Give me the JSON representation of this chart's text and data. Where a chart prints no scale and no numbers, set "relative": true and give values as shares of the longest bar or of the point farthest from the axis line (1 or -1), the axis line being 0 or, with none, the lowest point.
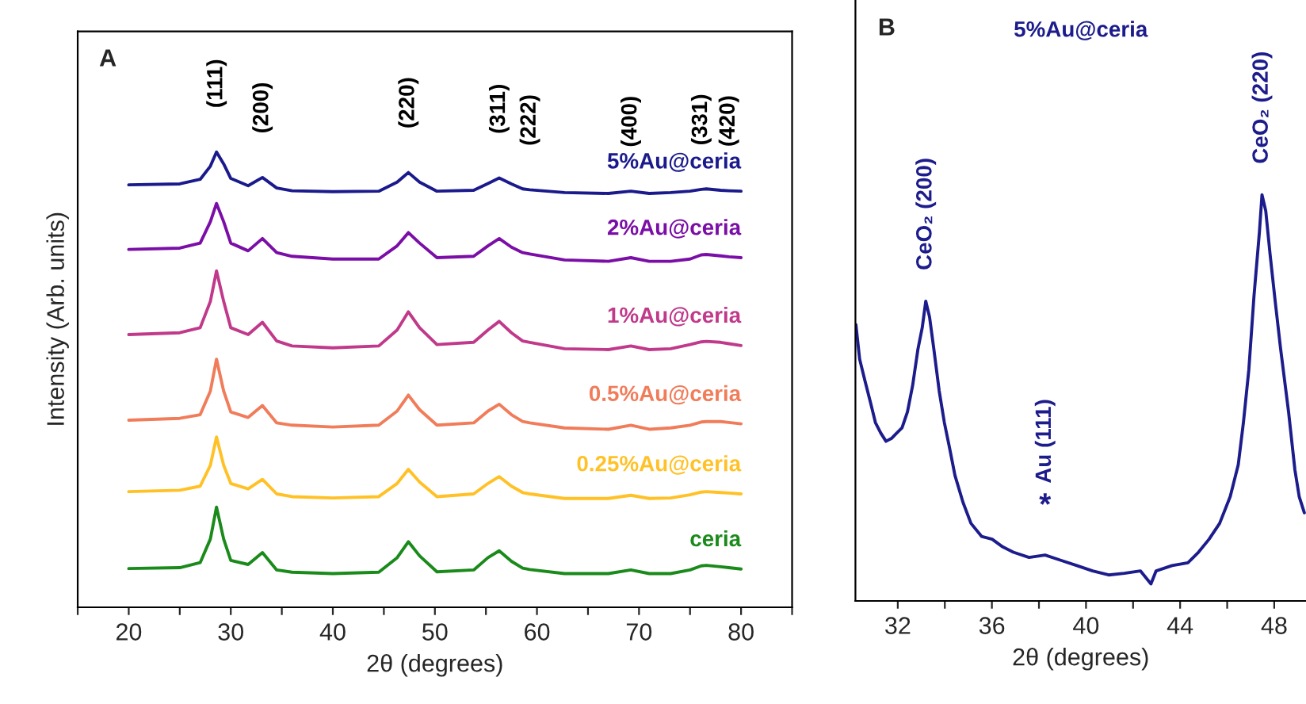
{
  "chart_data": [
    {
      "type": "line",
      "title": "A",
      "xlabel": "2θ (degrees)",
      "ylabel": "Intensity (Arb. units)",
      "relative": true,
      "tick_labels": "x",
      "legend": false,
      "grid": false,
      "marker": "none",
      "line_style": "solid",
      "x": [
        20,
        25,
        27,
        28,
        28.6,
        29.3,
        30,
        31.7,
        33.1,
        34.5,
        36,
        40,
        44.5,
        46.3,
        47.4,
        48.5,
        50.2,
        53.8,
        55.2,
        56.3,
        57.5,
        58.6,
        59.3,
        62.7,
        67,
        69.2,
        71,
        73.1,
        75,
        76.1,
        76.6,
        78,
        78.8,
        80
      ],
      "xlim": [
        15,
        85
      ],
      "xticks": [
        {
          "value": 15,
          "label": null
        },
        20,
        {
          "value": 25,
          "label": null
        },
        30,
        {
          "value": 35,
          "label": null
        },
        40,
        {
          "value": 45,
          "label": null
        },
        50,
        {
          "value": 55,
          "label": null
        },
        60,
        {
          "value": 65,
          "label": null
        },
        70,
        {
          "value": 75,
          "label": null
        },
        80,
        {
          "value": 85,
          "label": null
        }
      ],
      "series": [
        {
          "name": "5%Au@ceria",
          "color": "#1a1a8c",
          "values": [
            0.928,
            0.93,
            0.94,
            0.969,
            1.0,
            0.974,
            0.942,
            0.926,
            0.944,
            0.921,
            0.915,
            0.913,
            0.914,
            0.934,
            0.955,
            0.934,
            0.914,
            0.916,
            0.931,
            0.943,
            0.93,
            0.919,
            0.917,
            0.911,
            0.909,
            0.914,
            0.909,
            0.911,
            0.914,
            0.918,
            0.919,
            0.916,
            0.915,
            0.914
          ]
        },
        {
          "name": "2%Au@ceria",
          "color": "#7a0ea6",
          "values": [
            0.786,
            0.789,
            0.8,
            0.847,
            0.887,
            0.847,
            0.8,
            0.783,
            0.81,
            0.779,
            0.771,
            0.765,
            0.765,
            0.794,
            0.823,
            0.8,
            0.768,
            0.771,
            0.794,
            0.81,
            0.791,
            0.779,
            0.776,
            0.763,
            0.76,
            0.768,
            0.76,
            0.76,
            0.765,
            0.774,
            0.775,
            0.772,
            0.77,
            0.768
          ]
        },
        {
          "name": "1%Au@ceria",
          "color": "#c0398a",
          "values": [
            0.599,
            0.603,
            0.614,
            0.672,
            0.739,
            0.672,
            0.614,
            0.599,
            0.626,
            0.585,
            0.574,
            0.57,
            0.574,
            0.609,
            0.649,
            0.614,
            0.577,
            0.582,
            0.609,
            0.628,
            0.603,
            0.585,
            0.582,
            0.568,
            0.566,
            0.574,
            0.566,
            0.568,
            0.577,
            0.583,
            0.584,
            0.582,
            0.579,
            0.575
          ]
        },
        {
          "name": "0.5%Au@ceria",
          "color": "#f07c5a",
          "values": [
            0.411,
            0.415,
            0.423,
            0.475,
            0.545,
            0.475,
            0.429,
            0.417,
            0.443,
            0.405,
            0.4,
            0.396,
            0.4,
            0.431,
            0.466,
            0.434,
            0.4,
            0.405,
            0.431,
            0.446,
            0.423,
            0.408,
            0.405,
            0.394,
            0.391,
            0.4,
            0.391,
            0.394,
            0.4,
            0.407,
            0.408,
            0.408,
            0.406,
            0.403
          ]
        },
        {
          "name": "0.25%Au@ceria",
          "color": "#ffc125",
          "values": [
            0.254,
            0.257,
            0.266,
            0.312,
            0.374,
            0.312,
            0.272,
            0.26,
            0.281,
            0.249,
            0.243,
            0.24,
            0.243,
            0.272,
            0.303,
            0.275,
            0.243,
            0.249,
            0.272,
            0.287,
            0.266,
            0.252,
            0.249,
            0.239,
            0.239,
            0.246,
            0.239,
            0.24,
            0.247,
            0.253,
            0.254,
            0.252,
            0.251,
            0.249
          ]
        },
        {
          "name": "ceria",
          "color": "#1a8a1a",
          "values": [
            0.085,
            0.087,
            0.098,
            0.15,
            0.22,
            0.15,
            0.103,
            0.094,
            0.12,
            0.082,
            0.077,
            0.074,
            0.077,
            0.109,
            0.144,
            0.113,
            0.078,
            0.082,
            0.109,
            0.124,
            0.101,
            0.086,
            0.083,
            0.074,
            0.074,
            0.082,
            0.074,
            0.074,
            0.082,
            0.091,
            0.092,
            0.089,
            0.087,
            0.084
          ]
        }
      ],
      "annotations": [
        {
          "text": "(111)",
          "x": 28.6,
          "y": 1.0
        },
        {
          "text": "(200)",
          "x": 33.1,
          "y": 0.944
        },
        {
          "text": "(220)",
          "x": 47.4,
          "y": 0.955
        },
        {
          "text": "(311)",
          "x": 56.3,
          "y": 0.943
        },
        {
          "text": "(222)",
          "x": 59.3,
          "y": 0.917
        },
        {
          "text": "(400)",
          "x": 69.2,
          "y": 0.914
        },
        {
          "text": "(331)",
          "x": 76.1,
          "y": 0.918
        },
        {
          "text": "(420)",
          "x": 78.8,
          "y": 0.915
        }
      ]
    },
    {
      "type": "line",
      "title": "B",
      "xlabel": "2θ (degrees)",
      "relative": true,
      "tick_labels": "x",
      "legend": false,
      "grid": false,
      "marker": "none",
      "line_style": "solid",
      "xlim": [
        30.2,
        49.35
      ],
      "xticks": [
        32,
        {
          "value": 34,
          "label": null
        },
        36,
        {
          "value": 38,
          "label": null
        },
        40,
        {
          "value": 42,
          "label": null
        },
        44,
        {
          "value": 46,
          "label": null
        },
        48
      ],
      "series": [
        {
          "name": "5%Au@ceria",
          "color": "#1c1c8c",
          "x": [
            30.22,
            30.38,
            30.6,
            30.83,
            31.05,
            31.28,
            31.5,
            31.73,
            31.95,
            32.18,
            32.41,
            32.63,
            32.86,
            33.04,
            33.19,
            33.35,
            33.53,
            33.76,
            33.98,
            34.21,
            34.43,
            34.77,
            35.11,
            35.56,
            36.01,
            36.46,
            36.91,
            37.58,
            38.26,
            38.93,
            39.61,
            40.28,
            40.96,
            41.63,
            42.31,
            42.76,
            42.98,
            43.66,
            44.33,
            44.78,
            45.23,
            45.68,
            46.13,
            46.47,
            46.69,
            46.92,
            47.14,
            47.37,
            47.48,
            47.64,
            47.82,
            48.04,
            48.27,
            48.61,
            48.88,
            49.06,
            49.28
          ],
          "values": [
            0.68,
            0.595,
            0.543,
            0.491,
            0.439,
            0.413,
            0.393,
            0.4,
            0.413,
            0.426,
            0.465,
            0.53,
            0.621,
            0.673,
            0.738,
            0.699,
            0.621,
            0.517,
            0.439,
            0.374,
            0.309,
            0.243,
            0.191,
            0.159,
            0.152,
            0.133,
            0.12,
            0.107,
            0.113,
            0.1,
            0.087,
            0.074,
            0.064,
            0.068,
            0.074,
            0.042,
            0.074,
            0.087,
            0.094,
            0.12,
            0.152,
            0.191,
            0.257,
            0.335,
            0.439,
            0.569,
            0.751,
            0.908,
            1.0,
            0.96,
            0.855,
            0.738,
            0.621,
            0.465,
            0.322,
            0.257,
            0.217
          ]
        }
      ],
      "annotations": [
        {
          "text": "CeO₂ (200)",
          "x": 33.19,
          "y": 0.738
        },
        {
          "text": "CeO₂ (220)",
          "x": 47.48,
          "y": 1.0
        },
        {
          "text": "*",
          "x": 38.26,
          "y": 0.113
        },
        "Au (111)"
      ]
    }
  ]
}
